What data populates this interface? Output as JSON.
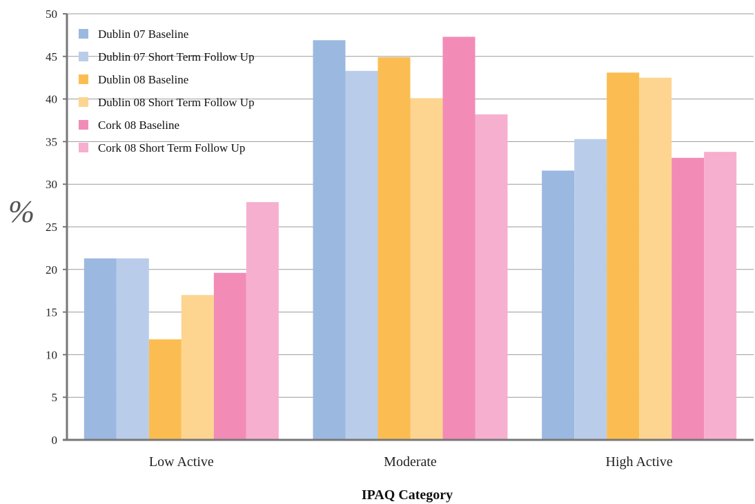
{
  "chart_data": {
    "type": "bar",
    "title": "",
    "xlabel": "IPAQ Category",
    "ylabel": "%",
    "ylim": [
      0,
      50
    ],
    "y_ticks": [
      0,
      5,
      10,
      15,
      20,
      25,
      30,
      35,
      40,
      45,
      50
    ],
    "grid": true,
    "legend_position": "top-left",
    "categories": [
      "Low Active",
      "Moderate",
      "High Active"
    ],
    "series": [
      {
        "name": "Dublin 07 Baseline",
        "color": "#9bb8e0",
        "values": [
          21.3,
          46.9,
          31.6
        ]
      },
      {
        "name": "Dublin 07 Short Term Follow Up",
        "color": "#b9cdea",
        "values": [
          21.3,
          43.3,
          35.3
        ]
      },
      {
        "name": "Dublin 08 Baseline",
        "color": "#fbbd52",
        "values": [
          11.8,
          44.9,
          43.1
        ]
      },
      {
        "name": "Dublin 08 Short Term Follow Up",
        "color": "#fdd590",
        "values": [
          17.0,
          40.1,
          42.5
        ]
      },
      {
        "name": "Cork 08 Baseline",
        "color": "#f28cb7",
        "values": [
          19.6,
          47.3,
          33.1
        ]
      },
      {
        "name": "Cork 08 Short Term Follow Up",
        "color": "#f6afcf",
        "values": [
          27.9,
          38.2,
          33.8
        ]
      }
    ]
  }
}
